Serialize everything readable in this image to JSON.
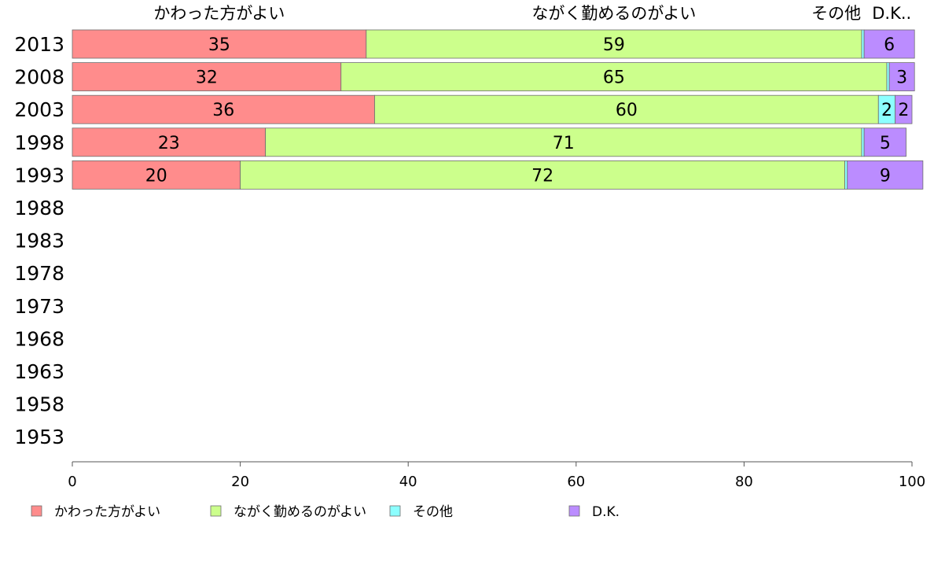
{
  "chart_data": {
    "type": "bar",
    "orientation": "horizontal",
    "stacked": true,
    "y_categories": [
      "2013",
      "2008",
      "2003",
      "1998",
      "1993",
      "1988",
      "1983",
      "1978",
      "1973",
      "1968",
      "1963",
      "1958",
      "1953"
    ],
    "series": [
      {
        "name": "かわった方がよい",
        "header": "かわった方がよい",
        "color": "#FF8C8C",
        "values": [
          35,
          32,
          36,
          23,
          20,
          null,
          null,
          null,
          null,
          null,
          null,
          null,
          null
        ],
        "labels": [
          "35",
          "32",
          "36",
          "23",
          "20"
        ]
      },
      {
        "name": "ながく勤めるのがよい",
        "header": "ながく勤めるのがよい",
        "color": "#CCFF8C",
        "values": [
          59,
          65,
          60,
          71,
          72,
          null,
          null,
          null,
          null,
          null,
          null,
          null,
          null
        ],
        "labels": [
          "59",
          "65",
          "60",
          "71",
          "72"
        ]
      },
      {
        "name": "その他",
        "header": "その他",
        "color": "#8CFFFF",
        "values": [
          0.3,
          0.3,
          2,
          0.3,
          0.3,
          null,
          null,
          null,
          null,
          null,
          null,
          null,
          null
        ],
        "labels": [
          "",
          "",
          "2",
          "",
          ""
        ]
      },
      {
        "name": "D.K.",
        "header": "D.K..",
        "color": "#BB8CFF",
        "values": [
          6,
          3,
          2,
          5,
          9,
          null,
          null,
          null,
          null,
          null,
          null,
          null,
          null
        ],
        "labels": [
          "6",
          "3",
          "2",
          "5",
          "9"
        ]
      }
    ],
    "xlim": [
      0,
      100
    ],
    "xticks": [
      "0",
      "20",
      "40",
      "60",
      "80",
      "100"
    ],
    "grid": false,
    "legend_placement": "bottom"
  }
}
